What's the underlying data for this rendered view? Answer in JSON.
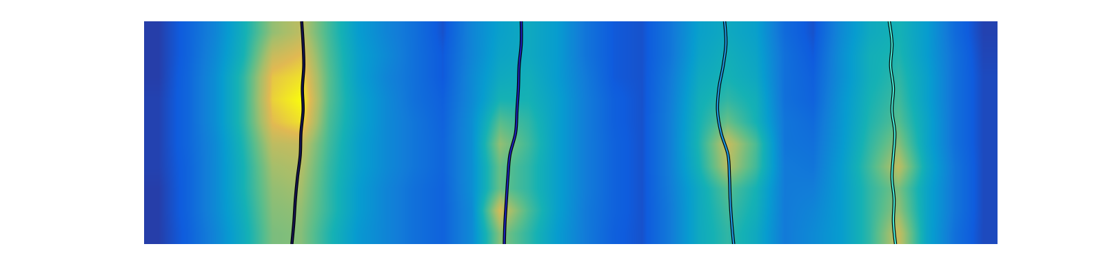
{
  "chart_data": {
    "type": "heatmap",
    "tick_labels": false,
    "xlim": [
      0,
      120
    ],
    "ylim": [
      0,
      100
    ],
    "zlim": [
      0,
      1
    ],
    "x": [
      2,
      6,
      10,
      14,
      18,
      22,
      26,
      30,
      34,
      38,
      42,
      46,
      50,
      54,
      58,
      62,
      66,
      70,
      74,
      78,
      82,
      86,
      90,
      94,
      98,
      102,
      106,
      110,
      114,
      118
    ],
    "y": [
      95,
      85,
      75,
      65,
      55,
      45,
      35,
      25,
      15,
      5
    ],
    "z": [
      [
        0.05,
        0.15,
        0.28,
        0.48,
        0.72,
        0.8,
        0.58,
        0.38,
        0.28,
        0.2,
        0.1,
        0.28,
        0.4,
        0.45,
        0.38,
        0.22,
        0.12,
        0.1,
        0.22,
        0.4,
        0.45,
        0.4,
        0.18,
        0.1,
        0.3,
        0.45,
        0.5,
        0.38,
        0.18,
        0.06
      ],
      [
        0.05,
        0.15,
        0.3,
        0.5,
        0.82,
        0.88,
        0.6,
        0.4,
        0.3,
        0.2,
        0.12,
        0.28,
        0.42,
        0.45,
        0.38,
        0.22,
        0.12,
        0.1,
        0.22,
        0.42,
        0.48,
        0.42,
        0.2,
        0.12,
        0.32,
        0.48,
        0.52,
        0.38,
        0.2,
        0.07
      ],
      [
        0.05,
        0.16,
        0.32,
        0.55,
        0.9,
        0.95,
        0.62,
        0.4,
        0.28,
        0.2,
        0.12,
        0.3,
        0.45,
        0.48,
        0.38,
        0.24,
        0.12,
        0.1,
        0.24,
        0.45,
        0.5,
        0.44,
        0.2,
        0.14,
        0.32,
        0.48,
        0.55,
        0.4,
        0.2,
        0.08
      ],
      [
        0.06,
        0.16,
        0.32,
        0.55,
        0.92,
        1.0,
        0.62,
        0.42,
        0.3,
        0.2,
        0.14,
        0.3,
        0.5,
        0.5,
        0.4,
        0.25,
        0.14,
        0.1,
        0.25,
        0.48,
        0.55,
        0.48,
        0.2,
        0.15,
        0.34,
        0.5,
        0.58,
        0.4,
        0.2,
        0.08
      ],
      [
        0.06,
        0.16,
        0.32,
        0.55,
        0.88,
        0.95,
        0.6,
        0.42,
        0.3,
        0.22,
        0.15,
        0.32,
        0.62,
        0.55,
        0.4,
        0.25,
        0.14,
        0.1,
        0.26,
        0.5,
        0.65,
        0.5,
        0.22,
        0.18,
        0.35,
        0.52,
        0.62,
        0.42,
        0.2,
        0.08
      ],
      [
        0.06,
        0.16,
        0.3,
        0.52,
        0.8,
        0.82,
        0.58,
        0.4,
        0.3,
        0.22,
        0.16,
        0.32,
        0.72,
        0.58,
        0.4,
        0.25,
        0.15,
        0.1,
        0.26,
        0.52,
        0.82,
        0.6,
        0.22,
        0.2,
        0.36,
        0.55,
        0.7,
        0.42,
        0.2,
        0.08
      ],
      [
        0.06,
        0.15,
        0.3,
        0.5,
        0.75,
        0.78,
        0.56,
        0.4,
        0.3,
        0.22,
        0.16,
        0.32,
        0.65,
        0.55,
        0.4,
        0.25,
        0.15,
        0.1,
        0.26,
        0.5,
        0.78,
        0.58,
        0.24,
        0.22,
        0.38,
        0.58,
        0.8,
        0.45,
        0.22,
        0.08
      ],
      [
        0.05,
        0.15,
        0.3,
        0.5,
        0.72,
        0.75,
        0.55,
        0.38,
        0.28,
        0.2,
        0.15,
        0.32,
        0.65,
        0.55,
        0.4,
        0.25,
        0.15,
        0.1,
        0.25,
        0.45,
        0.62,
        0.5,
        0.24,
        0.25,
        0.38,
        0.55,
        0.68,
        0.42,
        0.22,
        0.08
      ],
      [
        0.05,
        0.15,
        0.3,
        0.48,
        0.7,
        0.72,
        0.55,
        0.38,
        0.28,
        0.2,
        0.15,
        0.3,
        0.85,
        0.6,
        0.4,
        0.24,
        0.15,
        0.1,
        0.24,
        0.45,
        0.58,
        0.48,
        0.24,
        0.28,
        0.38,
        0.55,
        0.72,
        0.42,
        0.22,
        0.08
      ],
      [
        0.05,
        0.14,
        0.28,
        0.46,
        0.68,
        0.7,
        0.52,
        0.36,
        0.28,
        0.2,
        0.15,
        0.3,
        0.7,
        0.55,
        0.38,
        0.24,
        0.14,
        0.1,
        0.24,
        0.45,
        0.55,
        0.45,
        0.24,
        0.3,
        0.38,
        0.55,
        0.82,
        0.42,
        0.2,
        0.08
      ]
    ],
    "series": [
      {
        "type": "line",
        "color": "#141450",
        "x": [
          22.16,
          22.36,
          22.46,
          22.26,
          22.36,
          22.06,
          21.96,
          21.57,
          21.27,
          21.07,
          20.78
        ],
        "y": [
          100,
          90,
          80,
          70,
          60,
          50,
          40,
          30,
          20,
          10,
          0
        ]
      },
      {
        "type": "line",
        "color": "#1c22b4",
        "x": [
          53.03,
          53.03,
          52.73,
          52.63,
          52.43,
          52.24,
          51.44,
          51.15,
          50.95,
          50.75,
          50.65
        ],
        "y": [
          100,
          90,
          80,
          70,
          60,
          50,
          40,
          30,
          20,
          10,
          0
        ]
      },
      {
        "type": "line",
        "color": "#1e96dc",
        "x": [
          81.62,
          81.81,
          81.42,
          80.83,
          80.63,
          81.12,
          82.11,
          82.31,
          82.41,
          82.61,
          82.9
        ],
        "y": [
          100,
          90,
          80,
          70,
          60,
          50,
          40,
          30,
          20,
          10,
          0
        ]
      },
      {
        "type": "line",
        "color": "#46e6d2",
        "x": [
          104.77,
          105.16,
          104.97,
          105.36,
          105.16,
          105.56,
          105.36,
          105.16,
          105.46,
          105.36,
          105.66
        ],
        "y": [
          100,
          90,
          80,
          70,
          60,
          50,
          40,
          30,
          20,
          10,
          0
        ]
      }
    ]
  }
}
